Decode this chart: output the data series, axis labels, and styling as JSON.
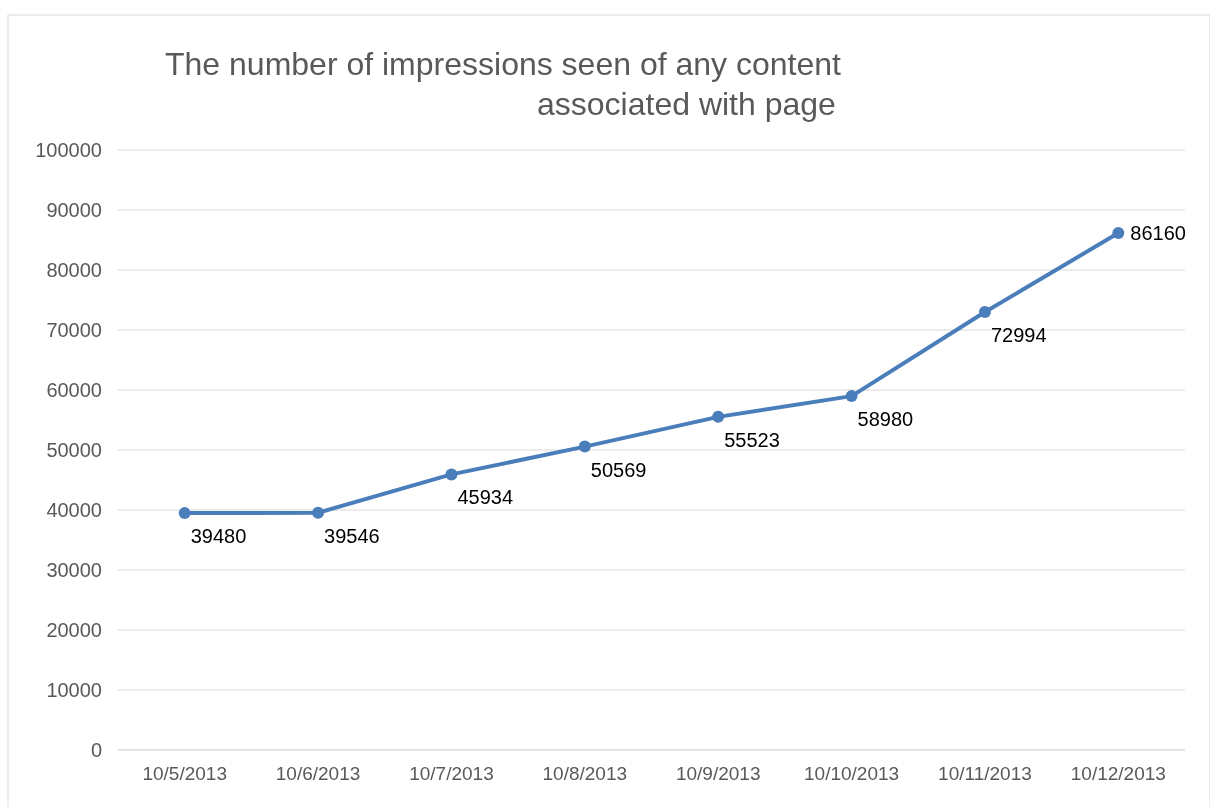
{
  "chart_data": {
    "type": "line",
    "title": "The number of impressions seen of any content associated with page",
    "categories": [
      "10/5/2013",
      "10/6/2013",
      "10/7/2013",
      "10/8/2013",
      "10/9/2013",
      "10/10/2013",
      "10/11/2013",
      "10/12/2013"
    ],
    "series": [
      {
        "color": "#4a7ebb",
        "values": [
          39480,
          39546,
          45934,
          50569,
          55523,
          58980,
          72994,
          86160
        ]
      }
    ],
    "ylim": [
      0,
      100000
    ],
    "yticks": [
      0,
      10000,
      20000,
      30000,
      40000,
      50000,
      60000,
      70000,
      80000,
      90000,
      100000
    ],
    "grid": "y",
    "marker": "circle",
    "data_labels": true
  }
}
